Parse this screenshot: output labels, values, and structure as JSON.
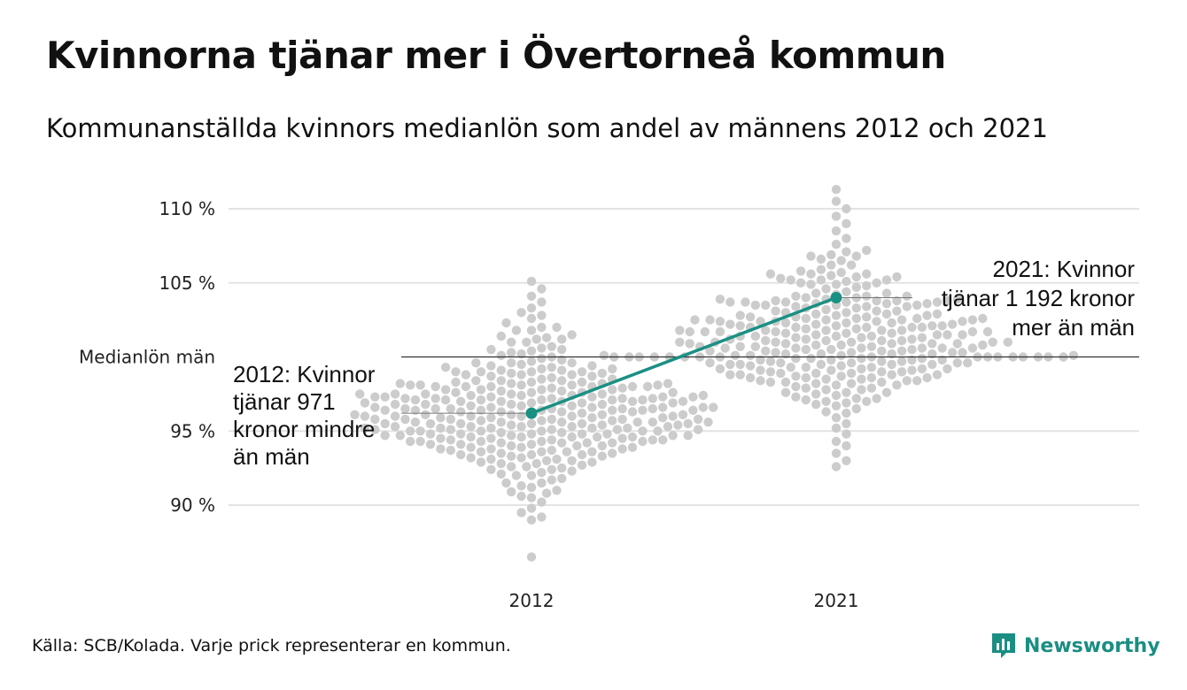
{
  "header": {
    "title": "Kvinnorna tjänar mer i Övertorneå kommun",
    "subtitle": "Kommunanställda kvinnors medianlön som andel av männens 2012 och 2021"
  },
  "footer": {
    "source": "Källa: SCB/Kolada. Varje prick representerar en kommun.",
    "logo_text": "Newsworthy"
  },
  "colors": {
    "highlight": "#1a9083",
    "dots": "#cccccc",
    "grid": "#e3e3e3",
    "reference_line": "#333333"
  },
  "chart_data": {
    "type": "scatter",
    "subtype": "beeswarm",
    "categories": [
      "2012",
      "2021"
    ],
    "y_tick_values": [
      110,
      105,
      95,
      90
    ],
    "y_tick_labels": [
      "110 %",
      "105 %",
      "95 %",
      "90 %"
    ],
    "reference_line": {
      "value": 100,
      "label": "Medianlön män"
    },
    "ylim": [
      85.5,
      112.5
    ],
    "grid": true,
    "highlight": {
      "name": "Övertorneå",
      "points": [
        {
          "x": "2012",
          "y": 96.2
        },
        {
          "x": "2021",
          "y": 104.0
        }
      ]
    },
    "annotations": [
      {
        "x": "2012",
        "lines": [
          "2012: Kvinnor",
          "tjänar 971",
          "kronor mindre",
          "än män"
        ]
      },
      {
        "x": "2021",
        "lines": [
          "2021: Kvinnor",
          "tjänar 1 192 kronor",
          "mer än män"
        ]
      }
    ],
    "series": [
      {
        "name": "2012",
        "values": [
          86.5,
          89.0,
          89.2,
          89.5,
          89.8,
          90.2,
          90.5,
          90.6,
          90.8,
          91.0,
          91.2,
          91.3,
          91.5,
          91.7,
          91.8,
          92.0,
          92.1,
          92.3,
          92.4,
          92.5,
          92.6,
          92.7,
          92.8,
          92.9,
          93.0,
          93.1,
          93.2,
          93.3,
          93.4,
          93.5,
          93.6,
          93.7,
          93.8,
          93.9,
          94.0,
          94.1,
          94.2,
          94.3,
          94.4,
          94.5,
          94.6,
          94.7,
          94.8,
          94.9,
          95.0,
          95.0,
          95.1,
          95.2,
          95.3,
          95.4,
          95.5,
          95.5,
          95.6,
          95.7,
          95.8,
          95.9,
          96.0,
          96.0,
          96.1,
          96.2,
          96.3,
          96.4,
          96.5,
          96.5,
          96.6,
          96.7,
          96.8,
          96.9,
          97.0,
          97.0,
          97.1,
          97.2,
          97.3,
          97.4,
          97.5,
          97.5,
          97.6,
          97.7,
          97.8,
          97.9,
          98.0,
          98.0,
          98.1,
          98.2,
          98.3,
          98.4,
          98.5,
          98.6,
          98.7,
          98.8,
          99.0,
          99.1,
          99.3,
          99.5,
          99.7,
          100.0,
          100.2,
          100.5,
          100.7,
          101.0,
          101.2,
          101.5,
          101.8,
          102.0,
          102.3,
          102.6,
          103.0,
          103.3,
          103.7,
          104.1,
          104.6,
          105.1,
          94.2,
          94.4,
          94.6,
          94.8,
          95.1,
          95.3,
          95.6,
          95.8,
          96.1,
          96.3,
          96.6,
          96.8,
          97.1,
          97.3,
          97.6,
          97.8,
          94.0,
          94.3,
          94.7,
          95.0,
          95.4,
          95.7,
          96.0,
          96.4,
          96.7,
          97.0,
          97.4,
          93.5,
          93.9,
          94.3,
          94.7,
          95.2,
          95.6,
          96.0,
          96.5,
          96.9,
          97.3,
          92.8,
          93.3,
          93.8,
          94.4,
          95.0,
          95.5,
          96.0,
          96.6,
          97.1,
          97.6,
          98.2,
          98.7,
          99.2,
          92.2,
          93.0,
          93.6,
          94.3,
          95.1,
          95.8,
          96.5,
          97.2,
          98.0,
          98.8,
          99.6,
          91.5,
          92.4,
          93.4,
          94.5,
          95.5,
          96.4,
          97.5,
          98.5,
          99.4,
          100.3,
          101.3,
          90.9,
          92.0,
          93.1,
          94.2,
          95.4,
          96.6,
          97.8,
          99.0,
          100.1,
          101.4,
          94.9,
          95.2,
          95.6,
          96.2,
          96.8,
          97.2,
          94.5,
          95.0,
          95.7,
          96.3,
          96.9,
          97.5,
          98.1,
          93.9,
          94.6,
          95.3,
          96.0,
          96.7,
          97.4,
          98.2,
          98.9,
          93.2,
          94.0,
          94.8,
          95.6,
          96.4,
          97.2,
          98.0,
          98.8,
          99.6,
          92.6,
          93.6,
          94.7,
          95.8,
          96.9,
          97.9,
          98.9,
          99.9,
          94.1,
          95.2,
          96.3,
          97.4,
          98.4,
          94.4,
          95.5,
          96.5,
          97.6,
          93.7,
          94.8,
          95.9,
          97.0,
          98.1,
          99.2,
          100.4,
          92.9,
          94.1,
          95.3,
          96.6,
          97.8,
          99.1,
          100.5,
          101.8,
          95.0,
          95.8,
          96.5,
          97.3,
          98.0,
          94.6,
          95.5,
          96.4,
          97.3,
          98.3,
          99.3,
          100.6,
          102.0,
          93.8,
          95.1,
          96.4,
          97.7,
          99.0,
          94.3,
          95.2,
          96.1,
          97.1,
          98.1,
          93.6,
          94.7,
          95.9,
          97.1,
          98.4,
          99.8,
          101.2,
          102.8,
          96.1,
          96.8,
          97.5,
          95.3,
          95.9,
          96.6,
          97.3,
          98.0,
          94.8,
          95.6,
          96.4,
          97.2,
          98.1,
          99.0,
          94.2,
          95.1,
          96.1,
          97.1,
          98.2,
          99.4,
          93.4,
          94.6,
          95.8,
          97.0,
          98.3,
          99.6,
          101.0
        ]
      },
      {
        "name": "2021",
        "values": [
          92.6,
          93.0,
          93.5,
          94.0,
          94.3,
          94.8,
          95.2,
          95.5,
          95.9,
          96.2,
          96.5,
          96.8,
          97.0,
          97.2,
          97.4,
          97.6,
          97.8,
          98.0,
          98.1,
          98.3,
          98.4,
          98.5,
          98.6,
          98.8,
          98.9,
          99.0,
          99.1,
          99.2,
          99.3,
          99.4,
          99.5,
          99.6,
          99.7,
          99.8,
          99.9,
          100.0,
          100.0,
          100.1,
          100.2,
          100.3,
          100.4,
          100.5,
          100.6,
          100.7,
          100.8,
          100.9,
          101.0,
          101.0,
          101.1,
          101.2,
          101.3,
          101.4,
          101.5,
          101.6,
          101.7,
          101.8,
          101.9,
          102.0,
          102.0,
          102.1,
          102.2,
          102.3,
          102.4,
          102.5,
          102.6,
          102.7,
          102.8,
          102.9,
          103.0,
          103.1,
          103.2,
          103.3,
          103.4,
          103.5,
          103.6,
          103.7,
          103.8,
          103.9,
          104.0,
          104.1,
          104.2,
          104.4,
          104.6,
          104.8,
          105.0,
          105.2,
          105.4,
          105.6,
          105.9,
          106.2,
          106.5,
          106.8,
          107.2,
          107.6,
          108.0,
          108.5,
          109.0,
          109.5,
          110.0,
          110.5,
          111.3,
          100.0,
          100.0,
          100.0,
          100.0,
          100.0,
          100.0,
          100.0,
          100.0,
          100.0,
          100.0,
          100.0,
          100.0,
          100.0,
          100.0,
          99.0,
          99.2,
          99.5,
          99.8,
          100.3,
          100.6,
          100.9,
          101.2,
          101.5,
          98.7,
          99.1,
          99.6,
          100.2,
          100.7,
          101.1,
          101.6,
          102.1,
          98.3,
          98.9,
          99.5,
          100.1,
          100.8,
          101.4,
          102.0,
          102.6,
          97.9,
          98.6,
          99.3,
          100.1,
          100.9,
          101.7,
          102.4,
          103.1,
          97.5,
          98.2,
          99.0,
          99.9,
          100.8,
          101.8,
          102.7,
          103.5,
          104.3,
          97.1,
          97.9,
          98.8,
          99.7,
          100.7,
          101.7,
          102.8,
          103.8,
          104.7,
          96.7,
          97.6,
          98.6,
          99.6,
          100.6,
          101.7,
          102.9,
          104.1,
          105.2,
          106.2,
          96.3,
          97.3,
          98.4,
          99.5,
          100.6,
          101.8,
          103.0,
          104.3,
          105.6,
          106.6,
          99.8,
          100.4,
          101.0,
          101.6,
          102.3,
          99.4,
          100.2,
          101.0,
          101.8,
          102.6,
          103.4,
          98.8,
          99.7,
          100.6,
          101.5,
          102.5,
          103.5,
          98.2,
          99.2,
          100.3,
          101.4,
          102.5,
          103.7,
          104.9,
          97.6,
          98.7,
          99.9,
          101.2,
          102.5,
          103.8,
          105.1,
          97.0,
          98.3,
          99.6,
          101.0,
          102.4,
          103.9,
          105.4,
          106.8,
          100.4,
          101.3,
          102.2,
          103.1,
          99.6,
          100.7,
          101.8,
          102.9,
          104.0,
          98.9,
          100.1,
          101.4,
          102.7,
          104.1,
          105.5,
          98.1,
          99.5,
          100.9,
          102.4,
          103.9,
          105.6,
          107.1,
          97.2,
          98.8,
          100.4,
          102.1,
          103.8,
          105.7,
          100.1,
          100.9,
          101.7,
          102.5,
          99.3,
          100.3,
          101.3,
          102.3,
          103.3,
          98.6,
          99.8,
          101.0,
          102.2,
          103.6,
          104.9,
          97.8,
          99.2,
          100.6,
          102.1,
          103.7,
          105.3,
          96.9,
          98.5,
          100.2,
          101.9,
          103.7,
          105.8,
          101.1,
          102.0,
          102.8,
          100.5,
          101.5,
          102.6,
          103.6,
          99.9,
          101.1,
          102.4,
          103.7,
          99.1,
          100.5,
          102.0,
          103.5,
          105.0,
          98.4,
          100.0,
          101.7,
          103.4,
          105.2,
          106.9
        ]
      }
    ]
  }
}
